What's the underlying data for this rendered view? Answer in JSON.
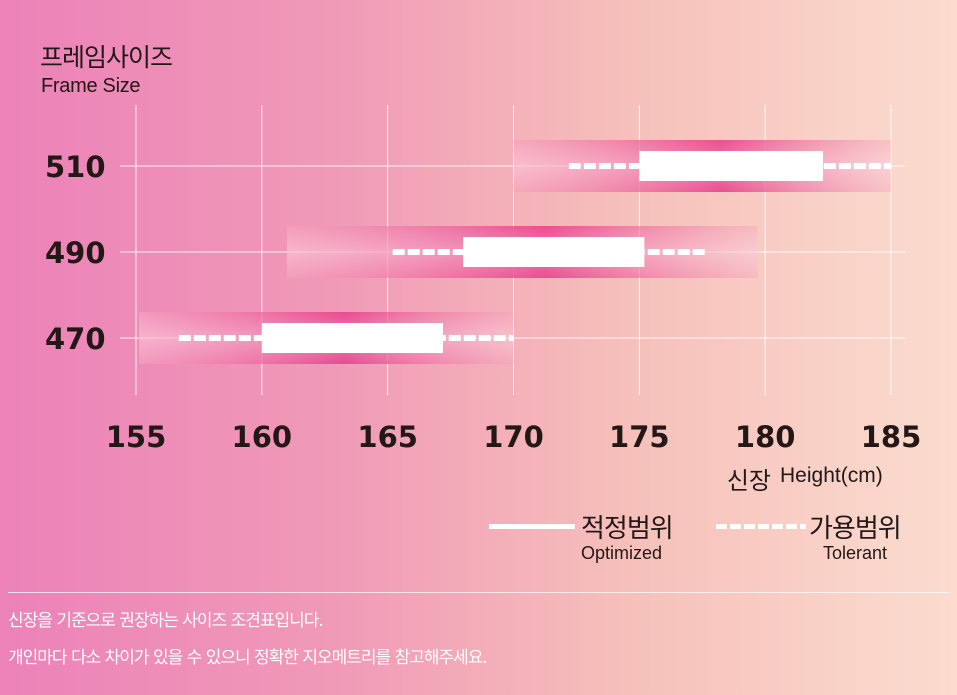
{
  "header": {
    "title_ko": "프레임사이즈",
    "title_en": "Frame Size"
  },
  "chart_data": {
    "type": "range",
    "title": "프레임사이즈",
    "subtitle": "Frame Size",
    "xlabel_ko": "신장",
    "xlabel_en": "Height(cm)",
    "xlim": [
      155,
      185
    ],
    "x_ticks": [
      "155",
      "160",
      "165",
      "170",
      "175",
      "180",
      "185"
    ],
    "categories": [
      "510",
      "490",
      "470"
    ],
    "series": [
      {
        "name": "적정범위",
        "values": [
          [
            175,
            182.3
          ],
          [
            168,
            175.2
          ],
          [
            160,
            167.2
          ]
        ]
      },
      {
        "name": "가용범위",
        "values": [
          [
            172.2,
            185
          ],
          [
            165.2,
            177.6
          ],
          [
            156.7,
            170
          ]
        ]
      }
    ],
    "bands": [
      [
        170,
        185
      ],
      [
        161,
        179.7
      ],
      [
        155,
        170
      ]
    ],
    "grid": true,
    "colors": {
      "optimized": "#ffffff",
      "tolerant": "#ffffff",
      "band_edge": "#f090b4",
      "band_center": "#e8428c"
    }
  },
  "legend": {
    "optimized_ko": "적정범위",
    "optimized_en": "Optimized",
    "tolerant_ko": "가용범위",
    "tolerant_en": "Tolerant"
  },
  "notes": [
    "신장을 기준으로 권장하는 사이즈 조견표입니다.",
    "개인마다 다소 차이가 있을 수 있으니 정확한 지오메트리를 참고해주세요."
  ]
}
